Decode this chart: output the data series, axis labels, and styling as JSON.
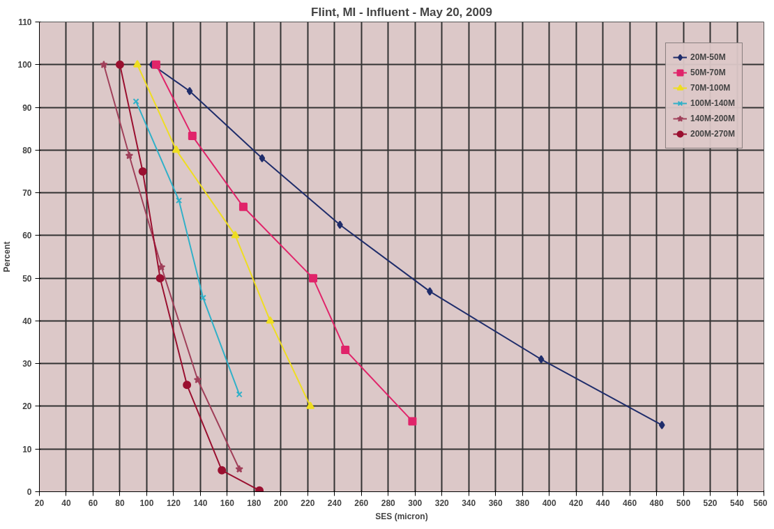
{
  "chart_data": {
    "type": "line",
    "title": "Flint, MI - Influent - May 20, 2009",
    "xlabel": "SES (micron)",
    "ylabel": "Percent",
    "xlim": [
      20,
      560
    ],
    "xticks": [
      20,
      40,
      60,
      80,
      100,
      120,
      140,
      160,
      180,
      200,
      220,
      240,
      260,
      280,
      300,
      320,
      340,
      360,
      380,
      400,
      420,
      440,
      460,
      480,
      500,
      520,
      540,
      560
    ],
    "ylim": [
      0,
      110
    ],
    "yticks": [
      0,
      10,
      20,
      30,
      40,
      50,
      60,
      70,
      80,
      90,
      100,
      110
    ],
    "grid": true,
    "legend": "top right",
    "line_style": "solid",
    "series": [
      {
        "name": "20M-50M",
        "color": "#1f2d6b",
        "marker": "diamond",
        "x": [
          104,
          132,
          186,
          244,
          311,
          394,
          484
        ],
        "values": [
          100,
          93.8,
          78.1,
          62.5,
          46.9,
          31.0,
          15.6
        ]
      },
      {
        "name": "50M-70M",
        "color": "#e0246a",
        "marker": "square",
        "x": [
          107,
          134,
          172,
          224,
          248,
          298
        ],
        "values": [
          100,
          83.3,
          66.7,
          50,
          33.2,
          16.5
        ]
      },
      {
        "name": "70M-100M",
        "color": "#eedd22",
        "marker": "triangle",
        "x": [
          93,
          122,
          166,
          192,
          222
        ],
        "values": [
          100,
          80,
          60,
          40,
          20
        ]
      },
      {
        "name": "100M-140M",
        "color": "#30b0c8",
        "marker": "cross",
        "x": [
          92,
          124,
          142,
          169
        ],
        "values": [
          91.4,
          68.2,
          45.4,
          22.8
        ]
      },
      {
        "name": "140M-200M",
        "color": "#a0405a",
        "marker": "star",
        "x": [
          68,
          87,
          111,
          138,
          169
        ],
        "values": [
          100,
          78.7,
          52.6,
          26.2,
          5.3
        ]
      },
      {
        "name": "200M-270M",
        "color": "#9a1030",
        "marker": "circle",
        "x": [
          80,
          97,
          110,
          130,
          156,
          184
        ],
        "values": [
          100,
          75,
          50,
          25,
          5,
          0.3
        ]
      }
    ]
  }
}
